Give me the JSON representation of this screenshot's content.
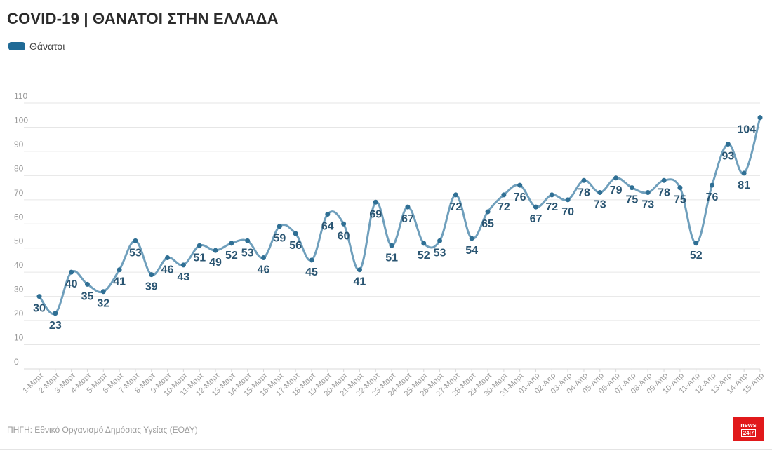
{
  "chart_data": {
    "type": "line",
    "title": "COVID-19 | ΘΑΝΑΤΟΙ ΣΤΗΝ ΕΛΛΑΔΑ",
    "series": [
      {
        "name": "Θάνατοι",
        "color": "#6f9fbc",
        "marker_color": "#2f6f94",
        "values": [
          30,
          23,
          40,
          35,
          32,
          41,
          53,
          39,
          46,
          43,
          51,
          49,
          52,
          53,
          46,
          59,
          56,
          45,
          64,
          60,
          41,
          69,
          51,
          67,
          52,
          53,
          72,
          54,
          65,
          72,
          76,
          67,
          72,
          70,
          78,
          73,
          79,
          75,
          73,
          78,
          75,
          52,
          76,
          93,
          81,
          104
        ]
      }
    ],
    "categories": [
      "1-Μαρτ",
      "2-Μαρτ",
      "3-Μαρτ",
      "4-Μαρτ",
      "5-Μαρτ",
      "6-Μαρτ",
      "7-Μαρτ",
      "8-Μαρτ",
      "9-Μαρτ",
      "10-Μαρτ",
      "11-Μαρτ",
      "12-Μαρτ",
      "13-Μαρτ",
      "14-Μαρτ",
      "15-Μαρτ",
      "16-Μαρτ",
      "17-Μαρτ",
      "18-Μαρτ",
      "19-Μαρτ",
      "20-Μαρτ",
      "21-Μαρτ",
      "22-Μαρτ",
      "23-Μαρτ",
      "24-Μαρτ",
      "25-Μαρτ",
      "26-Μαρτ",
      "27-Μαρτ",
      "28-Μαρτ",
      "29-Μαρτ",
      "30-Μαρτ",
      "31-Μαρτ",
      "01-Απρ",
      "02-Απρ",
      "03-Απρ",
      "04-Απρ",
      "05-Απρ",
      "06-Απρ",
      "07-Απρ",
      "08-Απρ",
      "09-Απρ",
      "10-Απρ",
      "11-Απρ",
      "12-Απρ",
      "13-Απρ",
      "14-Απρ",
      "15-Απρ"
    ],
    "label_position": [
      "below",
      "below",
      "below",
      "below",
      "below",
      "below",
      "below",
      "below",
      "below",
      "below",
      "below",
      "below",
      "below",
      "below",
      "below",
      "below",
      "below",
      "below",
      "below",
      "below",
      "below",
      "below",
      "below",
      "below",
      "below",
      "below",
      "below",
      "below",
      "below",
      "below",
      "below",
      "below",
      "below",
      "below",
      "below",
      "below",
      "below",
      "below",
      "below",
      "below",
      "below",
      "below",
      "below",
      "below",
      "below",
      "left"
    ],
    "yticks": [
      0,
      10,
      20,
      30,
      40,
      50,
      60,
      70,
      80,
      90,
      100,
      110
    ],
    "ylim": [
      0,
      110
    ],
    "xlabel": "",
    "ylabel": "",
    "grid": true,
    "legend_position": "top-left"
  },
  "source": "ΠΗΓΗ: Εθνικό Οργανισμό Δημόσιας Υγείας (ΕΟΔΥ)",
  "logo": {
    "top": "news",
    "bottom": "24|7",
    "color": "#e1191b"
  },
  "colors": {
    "legend_swatch": "#1f6a96",
    "grid": "#e6e6e6",
    "tick_text": "#9a9a9a",
    "label_text": "#2a5572"
  }
}
